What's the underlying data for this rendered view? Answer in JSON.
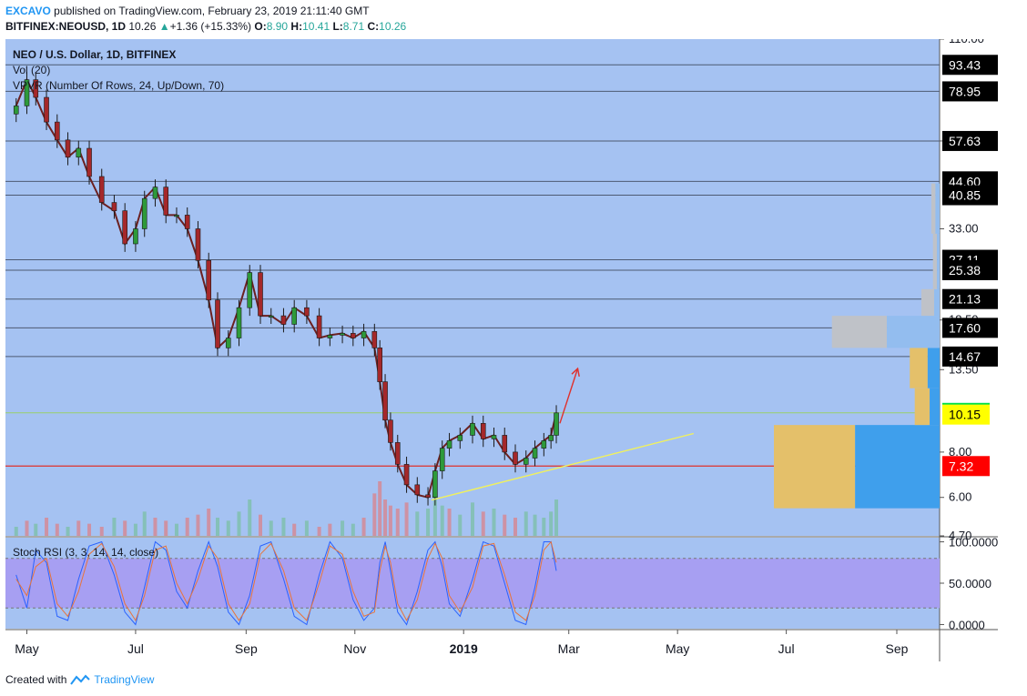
{
  "header": {
    "author": "EXCAVO",
    "published_text": "published on TradingView.com, February 23, 2019 21:11:40 GMT",
    "symbol": "BITFINEX:NEOUSD, 1D",
    "last": "10.26",
    "change": "+1.36 (+15.33%)",
    "o_label": "O:",
    "o_value": "8.90",
    "h_label": "H:",
    "h_value": "10.41",
    "l_label": "L:",
    "l_value": "8.71",
    "c_label": "C:",
    "c_value": "10.26"
  },
  "legend": {
    "title": "NEO / U.S. Dollar, 1D, BITFINEX",
    "vol": "Vol (20)",
    "vpvr": "VPVR (Number Of Rows, 24, Up/Down, 70)",
    "stoch": "Stoch RSI (3, 3, 14, 14, close)"
  },
  "footer": {
    "created_with": "Created with",
    "brand": "TradingView"
  },
  "colors": {
    "background": "#a5c2f2",
    "stoch_band": "#a79ff2",
    "up": "#2e9a3a",
    "down": "#a5282a",
    "vp_up": "#e4c06a",
    "vp_down": "#3f9fec",
    "vp_up_faded": "#bfc2c8",
    "vp_down_faded": "#93bdef",
    "support_line": "#e0312c",
    "price_line": "#9ad06a",
    "trend_line": "#f2f25a"
  },
  "chart_data": [
    {
      "type": "candlestick",
      "log_scale": true,
      "ylim": [
        4.7,
        110
      ],
      "x_range": [
        "2018-04-19",
        "2019-09-25"
      ],
      "x_tick_labels": [
        "May",
        "Jul",
        "Sep",
        "Nov",
        "2019",
        "Mar",
        "May",
        "Jul",
        "Sep"
      ],
      "y_tick_labels": [
        110,
        57.63,
        33.0,
        18.5,
        13.5,
        8.0,
        6.0,
        4.7
      ],
      "y_tick_text": [
        "110.00",
        "",
        "33.00",
        "18.50",
        "13.50",
        "8.00",
        "6.00",
        "4.70"
      ],
      "series": [
        {
          "x": [
            "2018-04-25",
            "2018-05-01",
            "2018-05-06",
            "2018-05-12",
            "2018-05-18",
            "2018-05-24",
            "2018-05-30",
            "2018-06-05",
            "2018-06-12",
            "2018-06-19",
            "2018-06-25",
            "2018-07-01",
            "2018-07-06",
            "2018-07-12",
            "2018-07-18",
            "2018-07-24",
            "2018-07-30",
            "2018-08-05",
            "2018-08-11",
            "2018-08-16",
            "2018-08-22",
            "2018-08-28",
            "2018-09-03",
            "2018-09-09",
            "2018-09-15",
            "2018-09-22",
            "2018-09-28",
            "2018-10-05",
            "2018-10-12",
            "2018-10-18",
            "2018-10-25",
            "2018-10-31",
            "2018-11-06",
            "2018-11-12",
            "2018-11-15",
            "2018-11-18",
            "2018-11-21",
            "2018-11-25",
            "2018-11-30",
            "2018-12-06",
            "2018-12-12",
            "2018-12-16",
            "2018-12-20",
            "2018-12-24",
            "2018-12-30",
            "2019-01-06",
            "2019-01-12",
            "2019-01-18",
            "2019-01-24",
            "2019-01-30",
            "2019-02-05",
            "2019-02-10",
            "2019-02-15",
            "2019-02-19",
            "2019-02-22"
          ],
          "close": [
            72,
            85,
            76,
            65,
            58,
            52,
            55,
            46,
            39,
            37,
            30,
            33,
            40,
            43,
            36,
            36,
            33,
            27,
            21,
            15.5,
            16.5,
            20,
            25,
            19,
            19,
            18,
            20,
            19,
            16.5,
            16.8,
            17,
            16.5,
            17.2,
            15.5,
            12.5,
            9.8,
            8.5,
            7.4,
            6.5,
            6.1,
            6.0,
            7.1,
            8.2,
            8.6,
            8.9,
            9.6,
            8.7,
            8.9,
            8.0,
            7.4,
            7.7,
            8.2,
            8.6,
            8.9,
            10.26
          ]
        }
      ],
      "horizontal_levels": [
        93.43,
        78.95,
        57.63,
        44.6,
        40.85,
        27.11,
        25.38,
        21.13,
        17.6,
        14.67,
        10.26,
        7.32
      ],
      "price_labels": [
        {
          "value": "93.43",
          "style": "black"
        },
        {
          "value": "78.95",
          "style": "black"
        },
        {
          "value": "57.63",
          "style": "black"
        },
        {
          "value": "44.60",
          "style": "black"
        },
        {
          "value": "40.85",
          "style": "black"
        },
        {
          "value": "27.11",
          "style": "black"
        },
        {
          "value": "25.38",
          "style": "black"
        },
        {
          "value": "21.13",
          "style": "black"
        },
        {
          "value": "17.60",
          "style": "black"
        },
        {
          "value": "14.67",
          "style": "black"
        },
        {
          "value": "10.26",
          "style": "green"
        },
        {
          "value": "10.15",
          "style": "yellow"
        },
        {
          "value": "7.32",
          "style": "red"
        }
      ],
      "volume_profile": [
        {
          "price_low": 5.6,
          "price_high": 9.5,
          "up_share": 0.49,
          "size": 1.0
        },
        {
          "price_low": 9.5,
          "price_high": 12.0,
          "up_share": 0.6,
          "size": 0.15
        },
        {
          "price_low": 12.0,
          "price_high": 15.5,
          "up_share": 0.6,
          "size": 0.18
        },
        {
          "price_low": 15.5,
          "price_high": 19.0,
          "up_share": 0.51,
          "size": 0.65
        },
        {
          "price_low": 19.0,
          "price_high": 22.5,
          "up_share": 0.7,
          "size": 0.11
        },
        {
          "price_low": 22.5,
          "price_high": 32.0,
          "up_share": 0.6,
          "size": 0.04
        },
        {
          "price_low": 32.0,
          "price_high": 44.0,
          "up_share": 0.5,
          "size": 0.05
        }
      ],
      "annotations": [
        {
          "type": "trend_line",
          "from": [
            "2018-12-14",
            5.9
          ],
          "to": [
            "2019-05-10",
            9.0
          ]
        },
        {
          "type": "arrow",
          "from": [
            "2019-02-24",
            9.6
          ],
          "to": [
            "2019-03-06",
            13.6
          ]
        }
      ]
    },
    {
      "type": "line",
      "title": "Stoch RSI (3, 3, 14, 14, close)",
      "ylim": [
        -5,
        105
      ],
      "y_tick_labels": [
        "100.0000",
        "50.0000",
        "0.0000"
      ],
      "band": [
        20,
        80
      ],
      "series": [
        {
          "name": "K",
          "values": [
            60,
            20,
            90,
            75,
            10,
            5,
            55,
            95,
            100,
            60,
            15,
            0,
            45,
            100,
            90,
            40,
            20,
            65,
            100,
            70,
            15,
            0,
            35,
            95,
            100,
            55,
            10,
            0,
            60,
            100,
            80,
            30,
            5,
            20,
            75,
            100,
            65,
            15,
            0,
            40,
            90,
            100,
            70,
            25,
            10,
            55,
            100,
            95,
            50,
            5,
            0,
            45,
            100,
            100,
            65
          ]
        },
        {
          "name": "D",
          "values": [
            55,
            35,
            70,
            80,
            25,
            10,
            40,
            85,
            98,
            70,
            25,
            5,
            35,
            90,
            95,
            50,
            25,
            55,
            95,
            80,
            25,
            5,
            25,
            85,
            98,
            65,
            20,
            5,
            50,
            95,
            85,
            40,
            10,
            15,
            65,
            95,
            75,
            25,
            5,
            30,
            80,
            98,
            80,
            35,
            15,
            45,
            95,
            98,
            60,
            15,
            5,
            35,
            90,
            100,
            75
          ]
        }
      ]
    },
    {
      "type": "bar",
      "title": "Vol (20)",
      "values": [
        3,
        5,
        4,
        6,
        4,
        3,
        5,
        4,
        3,
        6,
        5,
        4,
        8,
        6,
        5,
        4,
        6,
        7,
        9,
        6,
        5,
        8,
        12,
        7,
        5,
        6,
        4,
        5,
        3,
        4,
        5,
        4,
        6,
        14,
        18,
        12,
        10,
        9,
        11,
        8,
        9,
        13,
        10,
        9,
        7,
        11,
        8,
        9,
        7,
        6,
        8,
        7,
        6,
        8,
        12
      ],
      "up": [
        true,
        false,
        true,
        false,
        false,
        true,
        false,
        false,
        false,
        true,
        false,
        true,
        true,
        false,
        false,
        true,
        false,
        false,
        false,
        true,
        true,
        true,
        true,
        false,
        true,
        true,
        false,
        true,
        false,
        false,
        true,
        true,
        false,
        false,
        false,
        false,
        false,
        false,
        false,
        true,
        true,
        true,
        true,
        false,
        true,
        true,
        false,
        true,
        false,
        false,
        true,
        true,
        true,
        true,
        true
      ]
    }
  ]
}
